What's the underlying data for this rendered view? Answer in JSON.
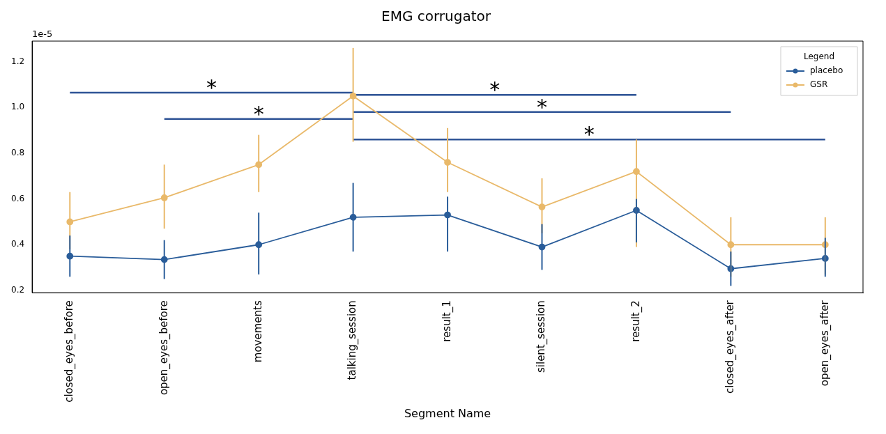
{
  "chart_data": {
    "type": "line",
    "title": "EMG corrugator",
    "xlabel": "Segment Name",
    "legend_title": "Legend",
    "legend": "top right",
    "marker": "circle",
    "grid": false,
    "categories": [
      "closed_eyes_before",
      "open_eyes_before",
      "movements",
      "talking_session",
      "result_1",
      "silent_session",
      "result_2",
      "closed_eyes_after",
      "open_eyes_after"
    ],
    "ylim": [
      0.19,
      1.29
    ],
    "yticks": [
      0.2,
      0.4,
      0.6,
      0.8,
      {
        "value": 1.0,
        "label": "1.0"
      },
      1.2
    ],
    "series": [
      {
        "name": "placebo",
        "color": "#2a5d9a",
        "values": [
          0.35,
          0.335,
          0.4,
          0.52,
          0.53,
          0.39,
          0.55,
          0.295,
          0.34
        ],
        "errors": [
          [
            0.26,
            0.44
          ],
          [
            0.25,
            0.42
          ],
          [
            0.27,
            0.54
          ],
          [
            0.37,
            0.67
          ],
          [
            0.37,
            0.61
          ],
          [
            0.29,
            0.49
          ],
          [
            0.41,
            0.6
          ],
          [
            0.22,
            0.37
          ],
          [
            0.26,
            0.43
          ]
        ]
      },
      {
        "name": "GSR",
        "color": "#e9b96a",
        "values": [
          0.5,
          0.605,
          0.75,
          1.05,
          0.76,
          0.565,
          0.72,
          0.4,
          0.4
        ],
        "errors": [
          [
            0.38,
            0.63
          ],
          [
            0.47,
            0.75
          ],
          [
            0.63,
            0.88
          ],
          [
            0.85,
            1.26
          ],
          [
            0.63,
            0.91
          ],
          [
            0.45,
            0.69
          ],
          [
            0.39,
            0.86
          ],
          [
            0.26,
            0.52
          ],
          [
            0.27,
            0.52
          ]
        ]
      },
      {
        "type": "line",
        "marker": "none",
        "color": "#2f5496",
        "x": [
          "closed_eyes_before",
          "talking_session"
        ],
        "values": [
          1.065,
          1.065
        ]
      },
      {
        "type": "line",
        "marker": "none",
        "color": "#2f5496",
        "x": [
          "open_eyes_before",
          "talking_session"
        ],
        "values": [
          0.95,
          0.95
        ]
      },
      {
        "type": "line",
        "marker": "none",
        "color": "#2f5496",
        "x": [
          "talking_session",
          "result_2"
        ],
        "values": [
          1.055,
          1.055
        ]
      },
      {
        "type": "line",
        "marker": "none",
        "color": "#2f5496",
        "x": [
          "talking_session",
          "closed_eyes_after"
        ],
        "values": [
          0.98,
          0.98
        ]
      },
      {
        "type": "line",
        "marker": "none",
        "color": "#2f5496",
        "x": [
          "talking_session",
          "open_eyes_after"
        ],
        "values": [
          0.86,
          0.86
        ]
      }
    ],
    "annotations": [
      "1e-5",
      "*",
      "*",
      "*",
      "*",
      "*"
    ]
  }
}
